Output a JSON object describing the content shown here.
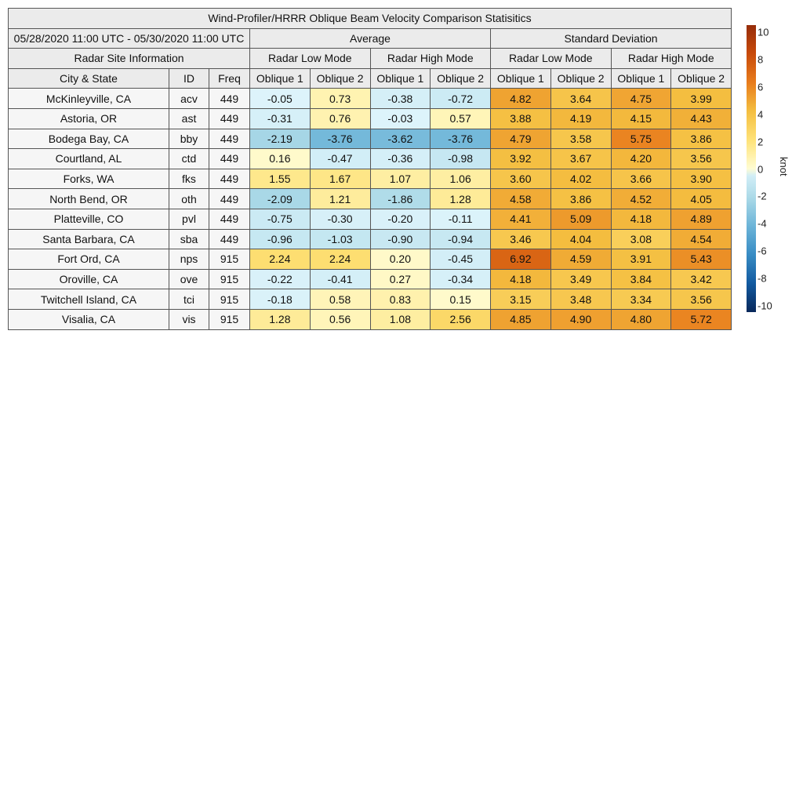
{
  "chart_data": {
    "type": "heatmap",
    "title": "Wind-Profiler/HRRR Oblique Beam Velocity Comparison Statisitics",
    "date_range": "05/28/2020 11:00 UTC - 05/30/2020 11:00 UTC",
    "group_headers": [
      "Average",
      "Standard Deviation"
    ],
    "info_header": "Radar Site Information",
    "mode_headers": [
      "Radar Low Mode",
      "Radar High Mode",
      "Radar Low Mode",
      "Radar High Mode"
    ],
    "column_headers": [
      "City & State",
      "ID",
      "Freq",
      "Oblique 1",
      "Oblique 2",
      "Oblique 1",
      "Oblique 2",
      "Oblique 1",
      "Oblique 2",
      "Oblique 1",
      "Oblique 2"
    ],
    "rows": [
      {
        "city": "McKinleyville, CA",
        "id": "acv",
        "freq": "449",
        "values": [
          -0.05,
          0.73,
          -0.38,
          -0.72,
          4.82,
          3.64,
          4.75,
          3.99
        ]
      },
      {
        "city": "Astoria, OR",
        "id": "ast",
        "freq": "449",
        "values": [
          -0.31,
          0.76,
          -0.03,
          0.57,
          3.88,
          4.19,
          4.15,
          4.43
        ]
      },
      {
        "city": "Bodega Bay, CA",
        "id": "bby",
        "freq": "449",
        "values": [
          -2.19,
          -3.76,
          -3.62,
          -3.76,
          4.79,
          3.58,
          5.75,
          3.86
        ]
      },
      {
        "city": "Courtland, AL",
        "id": "ctd",
        "freq": "449",
        "values": [
          0.16,
          -0.47,
          -0.36,
          -0.98,
          3.92,
          3.67,
          4.2,
          3.56
        ]
      },
      {
        "city": "Forks, WA",
        "id": "fks",
        "freq": "449",
        "values": [
          1.55,
          1.67,
          1.07,
          1.06,
          3.6,
          4.02,
          3.66,
          3.9
        ]
      },
      {
        "city": "North Bend, OR",
        "id": "oth",
        "freq": "449",
        "values": [
          -2.09,
          1.21,
          -1.86,
          1.28,
          4.58,
          3.86,
          4.52,
          4.05
        ]
      },
      {
        "city": "Platteville, CO",
        "id": "pvl",
        "freq": "449",
        "values": [
          -0.75,
          -0.3,
          -0.2,
          -0.11,
          4.41,
          5.09,
          4.18,
          4.89
        ]
      },
      {
        "city": "Santa Barbara, CA",
        "id": "sba",
        "freq": "449",
        "values": [
          -0.96,
          -1.03,
          -0.9,
          -0.94,
          3.46,
          4.04,
          3.08,
          4.54
        ]
      },
      {
        "city": "Fort Ord, CA",
        "id": "nps",
        "freq": "915",
        "values": [
          2.24,
          2.24,
          0.2,
          -0.45,
          6.92,
          4.59,
          3.91,
          5.43
        ]
      },
      {
        "city": "Oroville, CA",
        "id": "ove",
        "freq": "915",
        "values": [
          -0.22,
          -0.41,
          0.27,
          -0.34,
          4.18,
          3.49,
          3.84,
          3.42
        ]
      },
      {
        "city": "Twitchell Island, CA",
        "id": "tci",
        "freq": "915",
        "values": [
          -0.18,
          0.58,
          0.83,
          0.15,
          3.15,
          3.48,
          3.34,
          3.56
        ]
      },
      {
        "city": "Visalia, CA",
        "id": "vis",
        "freq": "915",
        "values": [
          1.28,
          0.56,
          1.08,
          2.56,
          4.85,
          4.9,
          4.8,
          5.72
        ]
      }
    ],
    "colorbar": {
      "label": "knot",
      "range": [
        -10,
        10
      ],
      "ticks": [
        "10",
        "8",
        "6",
        "4",
        "2",
        "0",
        "-2",
        "-4",
        "-6",
        "-8",
        "-10"
      ],
      "colormap": "diverging blue-yellow-orange"
    }
  }
}
